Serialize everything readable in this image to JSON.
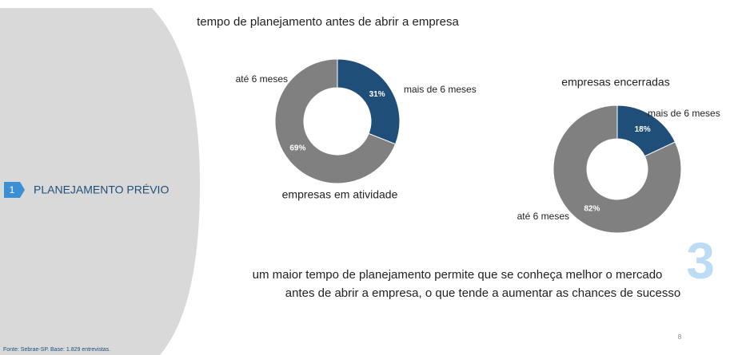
{
  "slide": {
    "title": "tempo de planejamento antes de abrir a empresa",
    "section_number": "1",
    "section_title": "PLANEJAMENTO PRÉVIO",
    "conclusion": [
      "um maior tempo de planejamento permite que se conheça melhor o mercado",
      "antes de abrir a empresa, o que tende a aumentar as chances de sucesso"
    ],
    "big_number": "3",
    "page_number": "8",
    "source": "Fonte: Sebrae-SP. Base: 1.829 entrevistas."
  },
  "chart_data": [
    {
      "type": "pie",
      "donut": true,
      "title": "empresas em atividade",
      "categories": [
        "mais de 6 meses",
        "até 6 meses"
      ],
      "values": [
        31,
        69
      ],
      "value_labels": [
        "31%",
        "69%"
      ],
      "colors": [
        "#1f4e79",
        "#808080"
      ]
    },
    {
      "type": "pie",
      "donut": true,
      "title": "empresas encerradas",
      "categories": [
        "mais de 6 meses",
        "até 6 meses"
      ],
      "values": [
        18,
        82
      ],
      "value_labels": [
        "18%",
        "82%"
      ],
      "colors": [
        "#1f4e79",
        "#808080"
      ]
    }
  ]
}
